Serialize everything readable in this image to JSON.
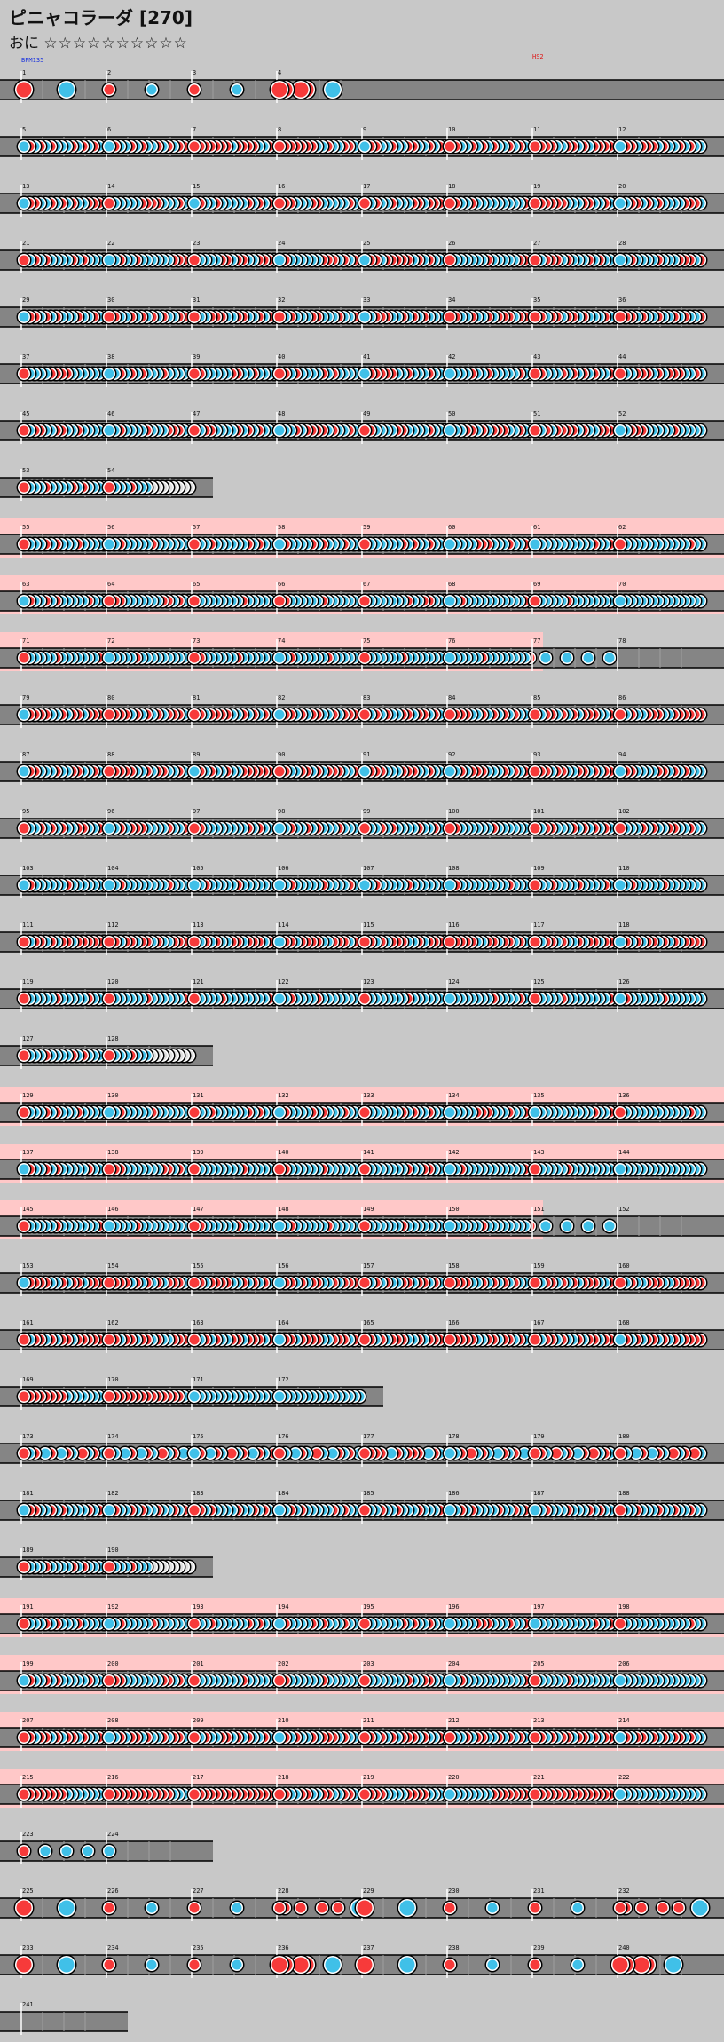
{
  "header": {
    "title": "ピニャコラーダ [270]",
    "difficulty_label": "おに",
    "stars": "☆☆☆☆☆☆☆☆☆☆"
  },
  "markers": {
    "bpm": "BPM135",
    "hs": "HS2"
  },
  "colors": {
    "background": "#c8c8c8",
    "lane": "#858585",
    "lane_border": "#000000",
    "gogo_band": "#ffc8c8",
    "don": "#f73a3a",
    "ka": "#40c0e8",
    "roll_end": "#e0e0e0"
  },
  "note_legend": {
    "d": "don",
    "k": "ka",
    "D": "big don",
    "K": "big ka",
    "r": "roll tail",
    "-": "rest"
  },
  "rows": [
    {
      "measures": [
        1,
        2,
        3,
        4
      ],
      "label_set": [
        "1",
        "2",
        "3",
        "4"
      ],
      "patterns": [
        "D-------K-------",
        "d-------k-------",
        "d-------k-------",
        "DD--DD----K-----"
      ],
      "width": 816,
      "gogo": false
    },
    {
      "measures": [
        5,
        6,
        7,
        8,
        9,
        10,
        11,
        12
      ],
      "label_set": [
        "5",
        "6",
        "7",
        "8",
        "9",
        "10",
        "11",
        "12"
      ],
      "patterns": [
        "kdkdkdkkkdkdkdkk",
        "kdkkdkdkkdkdkddk",
        "dddddddkddddkkdd",
        "dddddddkkdkkddkk",
        "kddkkdkkddkkdkdd",
        "ddkkdkdkdkkdkdkk",
        "ddddkkddkdkddddk",
        "kddkdddkdkkdkdkk"
      ],
      "width": 816,
      "gogo": false
    },
    {
      "measures": [
        13,
        14,
        15,
        16,
        17,
        18,
        19,
        20
      ],
      "label_set": [
        "13",
        "14",
        "15",
        "16",
        "17",
        "18",
        "19",
        "20"
      ],
      "patterns": [
        "kddkkdkdkdkkdddk",
        "dkkkkkddddkkkdkk",
        "kdkkdkkkkkdkdkdd",
        "dddkkkddkkkkkdkk",
        "dkdkkdkkkddkdddk",
        "ddkkdkkkkkkkkkdk",
        "ddddddkkkddkkdkd",
        "kkddkdkdkkkkdddk"
      ],
      "width": 816,
      "gogo": false
    },
    {
      "measures": [
        21,
        22,
        23,
        24,
        25,
        26,
        27,
        28
      ],
      "label_set": [
        "21",
        "22",
        "23",
        "24",
        "25",
        "26",
        "27",
        "28"
      ],
      "patterns": [
        "dkdkdkkkkdkdkkkd",
        "kkdkkdkkkkkkdddd",
        "dkkkkddkddkkdddd",
        "kdkkkkkkdddkdkdd",
        "kddkdddddkdkdkkk",
        "dkkkkkkdkkkkkddd",
        "dkdddkdkkkdkdkkk",
        "kkdkkkkdkkkdddkd"
      ],
      "width": 816,
      "gogo": false
    },
    {
      "measures": [
        29,
        30,
        31,
        32,
        33,
        34,
        35,
        36
      ],
      "label_set": [
        "29",
        "30",
        "31",
        "32",
        "33",
        "34",
        "35",
        "36"
      ],
      "patterns": [
        "kddkdkdkkkdkkdkk",
        "ddkkdkdkdkdkkddk",
        "dkkdddkkddkkdkdd",
        "dkdkkkddkkkdkkdd",
        "kkdddkkdkdkdkkkk",
        "ddkkdkkdkdddkddk",
        "ddkddkddkdkkkdkd",
        "dddkdkkdkkdkdkkd"
      ],
      "width": 816,
      "gogo": false
    },
    {
      "measures": [
        37,
        38,
        39,
        40,
        41,
        42,
        43,
        44
      ],
      "label_set": [
        "37",
        "38",
        "39",
        "40",
        "41",
        "42",
        "43",
        "44"
      ],
      "patterns": [
        "dkkkkddddkkkkkkk",
        "kkdkdkdkkkdkkkkd",
        "ddkkkkkddkkdkkkk",
        "ddkdkkkkdkdkkkkk",
        "kdddddkkdkkkdkkk",
        "kkkkdkkdkkkkkdkk",
        "ddkkkdkdkdkdkkdk",
        "dkkdddkdkdddkkdk"
      ],
      "width": 816,
      "gogo": false
    },
    {
      "measures": [
        45,
        46,
        47,
        48,
        49,
        50,
        51,
        52
      ],
      "label_set": [
        "45",
        "46",
        "47",
        "48",
        "49",
        "50",
        "51",
        "52"
      ],
      "patterns": [
        "dkddkkddkkdkkkkk",
        "kkdkkkkdkkkdddkd",
        "dkddkkkkdkdkdkkk",
        "kkkdkddddkdkkdkk",
        "ddkkkkddkkkkdkkd",
        "kkkddkdkdddkkdkk",
        "dkdkddddkdkkdddd",
        "kkdddkkkkkdkkkkk"
      ],
      "width": 816,
      "gogo": false
    },
    {
      "measures": [
        53,
        54
      ],
      "label_set": [
        "53",
        "54"
      ],
      "patterns": [
        "dkkkdkkkkdkdkkkk",
        "dkkkdkkkrrrrrrrr"
      ],
      "width": 240,
      "gogo": false
    },
    {
      "measures": [
        55,
        56,
        57,
        58,
        59,
        60,
        61,
        62
      ],
      "label_set": [
        "55",
        "56",
        "57",
        "58",
        "59",
        "60",
        "61",
        "62"
      ],
      "patterns": [
        "dkkkdkdkkkdkkkkk",
        "kkdkkkkkdkkkkkkd",
        "dkkdkkkkkkdkdkkk",
        "kdkkkkdkdkkkdkkk",
        "dkkkkkkdkdkkdkkk",
        "kkkkkdddkkkdkkdk",
        "kkkkkkkkkkkdkkdd",
        "dkkkkkkkkkkkkdkk"
      ],
      "width": 816,
      "gogo": true
    },
    {
      "measures": [
        63,
        64,
        65,
        66,
        67,
        68,
        69,
        70
      ],
      "label_set": [
        "63",
        "64",
        "65",
        "66",
        "67",
        "68",
        "69",
        "70"
      ],
      "patterns": [
        "kdkkdkdkkkkkdkkk",
        "dddkkkkkkkddkdkk",
        "dkkkkkkkkdkkkkkk",
        "ddkkkkkkdkkkkkkk",
        "dkkkkkkkdkkddkkk",
        "kkdkkkkkkkkkkkdk",
        "dkkkkkdkkkkkkkkk",
        "kkkkkkkkkkkkkkkk"
      ],
      "width": 816,
      "gogo": true
    },
    {
      "measures": [
        71,
        72,
        73,
        74,
        75,
        76,
        77,
        78
      ],
      "label_set": [
        "71",
        "72",
        "73",
        "74",
        "75",
        "76",
        "77",
        "78"
      ],
      "patterns": [
        "dkkkkkdkkkkkkkdk",
        "kkkkkdkkkkkkkkkk",
        "ddkkkkkkdkkkkkkk",
        "kkdkkkkkkdkkkkkk",
        "dkkkkkkdkkkkkkkk",
        "kkkkkkdkkkkkkkkd",
        "--k---k---k---k-",
        "----------------"
      ],
      "width": 816,
      "gogo": true,
      "gogo_end": 0.75
    },
    {
      "measures": [
        79,
        80,
        81,
        82,
        83,
        84,
        85,
        86
      ],
      "label_set": [
        "79",
        "80",
        "81",
        "82",
        "83",
        "84",
        "85",
        "86"
      ],
      "patterns": [
        "kddddkkdkddkdddk",
        "ddddkdkdkdkdddkd",
        "ddkddddkkdkdkdkd",
        "kddkdkddkkdkdddk",
        "dkdkdkkddkddkdkd",
        "ddddkkdkdkdkdkkk",
        "dkddkdkdkdddkkdk",
        "dkdkkdddkkdddddd"
      ],
      "width": 816,
      "gogo": false
    },
    {
      "measures": [
        87,
        88,
        89,
        90,
        91,
        92,
        93,
        94
      ],
      "label_set": [
        "87",
        "88",
        "89",
        "90",
        "91",
        "92",
        "93",
        "94"
      ],
      "patterns": [
        "kddkkkdkkddkkdkk",
        "dddddkkdkddkkdkd",
        "kdkdkkdkkddddddd",
        "ddkkddkdkdddkkdk",
        "kdddkkkdddkkdkkd",
        "kkdkdddkkkdkdkdd",
        "dddkddkkddkdkddd",
        "kddkkkkddkdkdkkk"
      ],
      "width": 816,
      "gogo": false
    },
    {
      "measures": [
        95,
        96,
        97,
        98,
        99,
        100,
        101,
        102
      ],
      "label_set": [
        "95",
        "96",
        "97",
        "98",
        "99",
        "100",
        "101",
        "102"
      ],
      "patterns": [
        "dkkdkdkdkkddkkdk",
        "kkdkdddkkkkdkkdk",
        "ddkkkkkkkkdkdkkk",
        "kkdkkdkdkkkdkkkk",
        "dkkdkdkkkkdkkdkd",
        "ddkkkkkkdkkkkkkk",
        "dkddkkkdkdkdkdkk",
        "dkkkdkdkkddkkdkk"
      ],
      "width": 816,
      "gogo": false
    },
    {
      "measures": [
        103,
        104,
        105,
        106,
        107,
        108,
        109,
        110
      ],
      "label_set": [
        "103",
        "104",
        "105",
        "106",
        "107",
        "108",
        "109",
        "110"
      ],
      "patterns": [
        "kdkkkkkkdkkkkkkd",
        "kkdkkkkkkkkdkkkk",
        "kkdkkkkkdkkkkkkk",
        "kkdkkkkkdkkkkdkk",
        "kkdkkkkkdkkkkkkk",
        "kdkkkkkkkkkdkkkk",
        "dkkdkkkkdkkkkdkk",
        "kkdkkkkkdkkkkkkk"
      ],
      "width": 816,
      "gogo": false
    },
    {
      "measures": [
        111,
        112,
        113,
        114,
        115,
        116,
        117,
        118
      ],
      "label_set": [
        "111",
        "112",
        "113",
        "114",
        "115",
        "116",
        "117",
        "118"
      ],
      "patterns": [
        "dkddkdkddkdddddk",
        "ddkddkddkdkkdddd",
        "dkdkdkkddkdddkdk",
        "kddkddddkkdddkdd",
        "ddkdkdddkkdkdddk",
        "dddddkkddkddkdkd",
        "dkddkdkkdkddkddd",
        "kdkdkddkdkdkdddd"
      ],
      "width": 816,
      "gogo": false
    },
    {
      "measures": [
        119,
        120,
        121,
        122,
        123,
        124,
        125,
        126
      ],
      "label_set": [
        "119",
        "120",
        "121",
        "122",
        "123",
        "124",
        "125",
        "126"
      ],
      "patterns": [
        "dkkkkkdkkkkkdkkk",
        "dkkkkkkdkkkkkkdk",
        "dkkkkdkkkkkkkkdk",
        "kkdkkkkdkkkkkkkk",
        "dkkkkkkkdkkkkkkk",
        "kkkkkkkkdkkkkdkk",
        "dkkkkdkkkkkkkkdk",
        "kdkkkkkkdkkkkkkk"
      ],
      "width": 816,
      "gogo": false
    },
    {
      "measures": [
        127,
        128
      ],
      "label_set": [
        "127",
        "128"
      ],
      "patterns": [
        "dkkkdkkkkdkdkkkk",
        "dkkkdkkkrrrrrrrr"
      ],
      "width": 240,
      "gogo": false
    },
    {
      "measures": [
        129,
        130,
        131,
        132,
        133,
        134,
        135,
        136
      ],
      "label_set": [
        "129",
        "130",
        "131",
        "132",
        "133",
        "134",
        "135",
        "136"
      ],
      "patterns": [
        "dkkkdkdkkkdkkkkk",
        "kkdkkkkkdkkkkkkd",
        "dkkdkkkkkkdkdkkk",
        "kdkkkkdkdkkkdkkk",
        "dkkkkkkdkdkkdkkk",
        "kkkkkdddkkkdkkdk",
        "kkkkkkkkkkkdkkdd",
        "dkkkkkkkkkkkkdkk"
      ],
      "width": 816,
      "gogo": true
    },
    {
      "measures": [
        137,
        138,
        139,
        140,
        141,
        142,
        143,
        144
      ],
      "label_set": [
        "137",
        "138",
        "139",
        "140",
        "141",
        "142",
        "143",
        "144"
      ],
      "patterns": [
        "kdkkdkdkkkkkdkkk",
        "dddkkkkkkkddkdkk",
        "dkkkkkkkkdkkkkkk",
        "ddkkkkkkdkkkkkkk",
        "dkkkkkkkdkkddkkk",
        "kkdkkkkkkkkkkkdk",
        "dkkkkkdkkkkkkkkk",
        "kkkkkkkkkkkkkkkk"
      ],
      "width": 816,
      "gogo": true
    },
    {
      "measures": [
        145,
        146,
        147,
        148,
        149,
        150,
        151,
        152
      ],
      "label_set": [
        "145",
        "146",
        "147",
        "148",
        "149",
        "150",
        "151",
        "152"
      ],
      "patterns": [
        "dkkkkkdkkkkkkkdk",
        "kkkkkdkkkkkkkkkk",
        "ddkkkkkkdkkkkkkk",
        "kkdkkkkkkdkkkkkk",
        "dkkkkkkdkkkkkkkk",
        "kkkkkkdkkkkkkkkd",
        "--k---k---k---k-",
        "----------------"
      ],
      "width": 816,
      "gogo": true,
      "gogo_end": 0.75
    },
    {
      "measures": [
        153,
        154,
        155,
        156,
        157,
        158,
        159,
        160
      ],
      "label_set": [
        "153",
        "154",
        "155",
        "156",
        "157",
        "158",
        "159",
        "160"
      ],
      "patterns": [
        "kddddkkdkddkdddk",
        "ddddkdkdkdkdddkd",
        "ddkddddkkdkdkdkd",
        "kddkdkddkkdkdddk",
        "dkdkdkkddkddkdkd",
        "ddddkkdkdkdkdkkk",
        "dkddkdkdkdddkkdk",
        "dkdkkdddkkdddddd"
      ],
      "width": 816,
      "gogo": false
    },
    {
      "measures": [
        161,
        162,
        163,
        164,
        165,
        166,
        167,
        168
      ],
      "label_set": [
        "161",
        "162",
        "163",
        "164",
        "165",
        "166",
        "167",
        "168"
      ],
      "patterns": [
        "dkddkdkddkdddddk",
        "ddkddkddkdkkdddd",
        "dkdkdkkddkdddkdk",
        "kddkddddkkdddkdd",
        "ddkdkdddkkdkdddk",
        "dddddkkddkddkdkd",
        "dkddkdkkdkddkddd",
        "kdkdkddkdkdkdddd"
      ],
      "width": 816,
      "gogo": false
    },
    {
      "measures": [
        169,
        170,
        171,
        172
      ],
      "label_set": [
        "169",
        "170",
        "171",
        "172"
      ],
      "patterns": [
        "ddddddddkkkkkkkk",
        "ddddddddddddddkk",
        "kkkkkkkkkkkkkkkk",
        "kkkkkkkkkkkkkkkk"
      ],
      "width": 432,
      "gogo": false
    },
    {
      "measures": [
        173,
        174,
        175,
        176,
        177,
        178,
        179,
        180
      ],
      "label_set": [
        "173",
        "174",
        "175",
        "176",
        "177",
        "178",
        "179",
        "180"
      ],
      "patterns": [
        "dkd-kd-kdk-dkd-k",
        "dk-kd-kdk-dkd-kd",
        "kd-kdk-dkd-kdk-d",
        "dk-kdk-dk-kdkd-k",
        "dddd-kdkddd-kdkd",
        "kkd-dkdk-kdkd-kd",
        "ddk-dkd-kd-dkdk-",
        "dk-kd-kdk-dkd-dk"
      ],
      "width": 816,
      "gogo": false
    },
    {
      "measures": [
        181,
        182,
        183,
        184,
        185,
        186,
        187,
        188
      ],
      "label_set": [
        "181",
        "182",
        "183",
        "184",
        "185",
        "186",
        "187",
        "188"
      ],
      "patterns": [
        "kddkkdkdkkkkdkdk",
        "kdkkdkdkkdkkdkdk",
        "ddkdkkkkdkkdkdkk",
        "kkdkdkkkkkdkdkkd",
        "dkkdkkdkkkdkkkdk",
        "kkdkdkkkkdkkdkdk",
        "kkdkkkdkkkdkdkkd",
        "dkkdkkkdkkdkkdkk"
      ],
      "width": 816,
      "gogo": false
    },
    {
      "measures": [
        189,
        190
      ],
      "label_set": [
        "189",
        "190"
      ],
      "patterns": [
        "dkkkdkkkkdkdkkkk",
        "dkkkdkkkrrrrrrrr"
      ],
      "width": 240,
      "gogo": false
    },
    {
      "measures": [
        191,
        192,
        193,
        194,
        195,
        196,
        197,
        198
      ],
      "label_set": [
        "191",
        "192",
        "193",
        "194",
        "195",
        "196",
        "197",
        "198"
      ],
      "patterns": [
        "dkkkdkdkkkdkkkkk",
        "kkdkkkkkdkkkkkkd",
        "dkkdkkkkkkdkdkkk",
        "kdkkkkdkdkkkdkkk",
        "dkkkkkkdkdkkdkkk",
        "kkkkkdddkkkdkkdk",
        "kkkkkkkkkkkdkkdd",
        "dkkkkkkkkkkkkdkk"
      ],
      "width": 816,
      "gogo": true
    },
    {
      "measures": [
        199,
        200,
        201,
        202,
        203,
        204,
        205,
        206
      ],
      "label_set": [
        "199",
        "200",
        "201",
        "202",
        "203",
        "204",
        "205",
        "206"
      ],
      "patterns": [
        "kdkkdkdkkkkkdkkk",
        "dddkkkkkkkddkdkk",
        "dkkkkkkkkdkkkkkk",
        "ddkkkkkkdkkkkkkk",
        "dkkkkkkkdkkddkkk",
        "kkdkkkkkkkkkkkdk",
        "dkkkkkdkkkkkkkkk",
        "kkkkkkkkkkkkkkkk"
      ],
      "width": 816,
      "gogo": true
    },
    {
      "measures": [
        207,
        208,
        209,
        210,
        211,
        212,
        213,
        214
      ],
      "label_set": [
        "207",
        "208",
        "209",
        "210",
        "211",
        "212",
        "213",
        "214"
      ],
      "patterns": [
        "ddkddkdkddkdkkdd",
        "kkdkddkdkkdkddkd",
        "dkdkkddkdkdkkdkd",
        "kdkdkkdkdddkdkkd",
        "ddkdkdkdddkdkkdd",
        "dkkdkddkkdkdkdkk",
        "ddkdkddkddkdkddk",
        "kdkddkdkdkddkdkk"
      ],
      "width": 816,
      "gogo": true
    },
    {
      "measures": [
        215,
        216,
        217,
        218,
        219,
        220,
        221,
        222
      ],
      "label_set": [
        "215",
        "216",
        "217",
        "218",
        "219",
        "220",
        "221",
        "222"
      ],
      "patterns": [
        "ddddddddkkkkkkkk",
        "ddddddddddddkkkk",
        "dddddddddddddddd",
        "ddkkddkkddkkddkk",
        "ddddkkkkddddkkkk",
        "kkkkkkkkdddddddd",
        "dddddddddddddddd",
        "kkkkkkkkkkkkkkkk"
      ],
      "width": 816,
      "gogo": true
    },
    {
      "measures": [
        223,
        224
      ],
      "label_set": [
        "223",
        "224"
      ],
      "patterns": [
        "d---k---k---k---",
        "k---------------"
      ],
      "width": 240,
      "gogo": false
    },
    {
      "measures": [
        225,
        226,
        227,
        228,
        229,
        230,
        231,
        232
      ],
      "label_set": [
        "225",
        "226",
        "227",
        "228",
        "229",
        "230",
        "231",
        "232"
      ],
      "patterns": [
        "D-------K-------",
        "d-------k-------",
        "d-------k-------",
        "dd--d---d--d---K",
        "D-------K-------",
        "d-------k-------",
        "d-------k-------",
        "dd--d---d--d---K"
      ],
      "width": 816,
      "gogo": false,
      "four_per": true
    },
    {
      "measures": [
        233,
        234,
        235,
        236,
        237,
        238,
        239,
        240
      ],
      "label_set": [
        "233",
        "234",
        "235",
        "236",
        "237",
        "238",
        "239",
        "240"
      ],
      "patterns": [
        "D-------K-------",
        "d-------k-------",
        "d-------k-------",
        "DD--DD----K-----",
        "D-------K-------",
        "d-------k-------",
        "d-------k-------",
        "DD--DD----K-----"
      ],
      "width": 816,
      "gogo": false,
      "four_per": true
    },
    {
      "measures": [
        241
      ],
      "label_set": [
        "241"
      ],
      "patterns": [
        "----------------"
      ],
      "width": 144,
      "gogo": false
    }
  ]
}
